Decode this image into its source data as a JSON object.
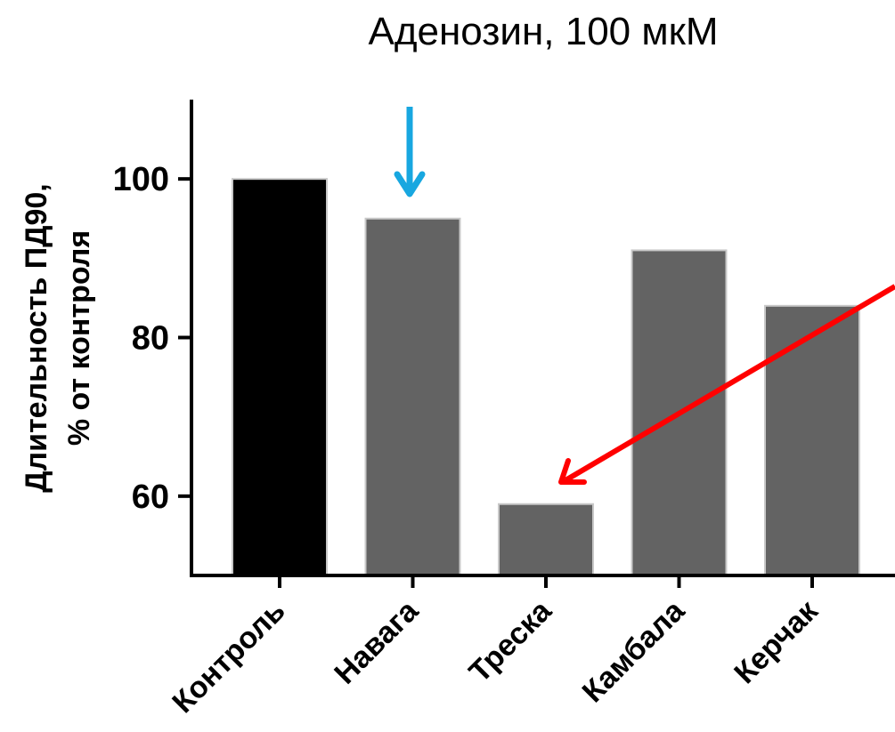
{
  "chart_data": {
    "type": "bar",
    "title": "Аденозин, 100 мкМ",
    "ylabel_line1": "Длительность ПД90,",
    "ylabel_line2": "% от контроля",
    "xlabel": "",
    "categories": [
      "Контроль",
      "Навага",
      "Треска",
      "Камбала",
      "Керчак"
    ],
    "values": [
      100,
      95,
      59,
      91,
      84
    ],
    "ylim": [
      50,
      110
    ],
    "yticks": [
      60,
      80,
      100
    ],
    "bar_colors": [
      "#000000",
      "#636363",
      "#636363",
      "#636363",
      "#636363"
    ],
    "grid": false,
    "legend": "none",
    "annotations": [
      {
        "type": "arrow",
        "color": "#18a7e0",
        "target": "Навага"
      },
      {
        "type": "arrow",
        "color": "#ff0000",
        "target": "Треска"
      }
    ]
  }
}
